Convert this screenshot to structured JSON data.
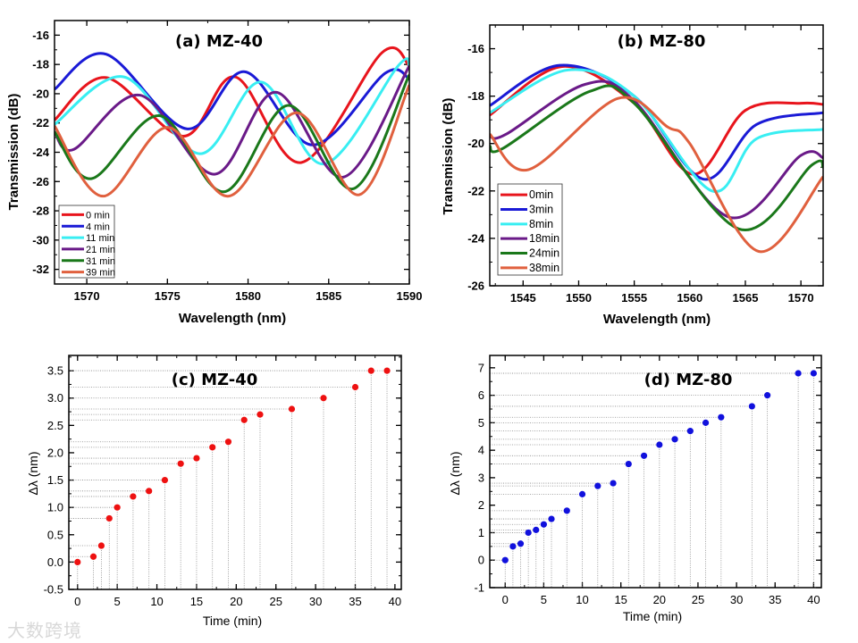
{
  "watermark": "大数跨境",
  "colors": {
    "red": "#e8141c",
    "blue": "#1a1ad6",
    "cyan": "#38eef2",
    "purple": "#6a1a88",
    "green": "#1a781a",
    "orange": "#e0603e",
    "marker_c": "#ee1111",
    "marker_d": "#1111dd",
    "guide": "#8a8a8a"
  },
  "chart_data": [
    {
      "id": "a",
      "type": "line",
      "title": "(a) MZ-40",
      "xlabel": "Wavelength (nm)",
      "ylabel": "Transmission (dB)",
      "xlim": [
        1568,
        1590
      ],
      "ylim": [
        -33,
        -15
      ],
      "xticks": [
        1570,
        1575,
        1580,
        1585,
        1590
      ],
      "yticks": [
        -16,
        -18,
        -20,
        -22,
        -24,
        -26,
        -28,
        -30,
        -32
      ],
      "legend": "bottom-left",
      "series": [
        {
          "name": "0 min",
          "color": "red",
          "points": [
            [
              1568,
              -21.8
            ],
            [
              1571.2,
              -18.9
            ],
            [
              1576.0,
              -22.9
            ],
            [
              1579.2,
              -18.85
            ],
            [
              1583.3,
              -24.7
            ],
            [
              1588.3,
              -17.2
            ],
            [
              1590,
              -18.1
            ]
          ]
        },
        {
          "name": "4 min",
          "color": "blue",
          "points": [
            [
              1568,
              -19.7
            ],
            [
              1571.2,
              -17.3
            ],
            [
              1576.2,
              -22.4
            ],
            [
              1579.8,
              -18.5
            ],
            [
              1584.0,
              -23.5
            ],
            [
              1588.5,
              -18.6
            ],
            [
              1590,
              -19.0
            ]
          ]
        },
        {
          "name": "11 min",
          "color": "cyan",
          "points": [
            [
              1568,
              -22.1
            ],
            [
              1572.3,
              -18.85
            ],
            [
              1577.0,
              -24.1
            ],
            [
              1580.8,
              -19.2
            ],
            [
              1584.7,
              -24.8
            ],
            [
              1589.3,
              -18.1
            ],
            [
              1590,
              -18.1
            ]
          ]
        },
        {
          "name": "21 min",
          "color": "purple",
          "points": [
            [
              1568,
              -22.6
            ],
            [
              1569.2,
              -23.8
            ],
            [
              1573.3,
              -20.1
            ],
            [
              1577.9,
              -25.5
            ],
            [
              1581.7,
              -19.9
            ],
            [
              1585.9,
              -25.7
            ],
            [
              1590,
              -18.1
            ]
          ]
        },
        {
          "name": "31 min",
          "color": "green",
          "points": [
            [
              1568,
              -22.6
            ],
            [
              1570.3,
              -25.8
            ],
            [
              1574.5,
              -21.5
            ],
            [
              1578.5,
              -26.7
            ],
            [
              1582.5,
              -20.8
            ],
            [
              1586.5,
              -26.5
            ],
            [
              1590,
              -18.7
            ]
          ]
        },
        {
          "name": "39 min",
          "color": "orange",
          "points": [
            [
              1568,
              -22.2
            ],
            [
              1571.0,
              -27.0
            ],
            [
              1575.0,
              -22.3
            ],
            [
              1578.8,
              -27.0
            ],
            [
              1583.0,
              -21.3
            ],
            [
              1586.9,
              -26.9
            ],
            [
              1590,
              -19.4
            ]
          ]
        }
      ]
    },
    {
      "id": "b",
      "type": "line",
      "title": "(b) MZ-80",
      "xlabel": "Wavelength (nm)",
      "ylabel": "Transmission (dB)",
      "xlim": [
        1542,
        1572
      ],
      "ylim": [
        -26,
        -15
      ],
      "xticks": [
        1545,
        1550,
        1555,
        1560,
        1565,
        1570
      ],
      "yticks": [
        -16,
        -18,
        -20,
        -22,
        -24,
        -26
      ],
      "legend": "bottom-left",
      "series": [
        {
          "name": "0min",
          "color": "red",
          "points": [
            [
              1542,
              -18.8
            ],
            [
              1548.5,
              -16.75
            ],
            [
              1555,
              -18.3
            ],
            [
              1560.3,
              -21.3
            ],
            [
              1565,
              -18.6
            ],
            [
              1570,
              -18.3
            ],
            [
              1572,
              -18.35
            ]
          ]
        },
        {
          "name": "3min",
          "color": "blue",
          "points": [
            [
              1542,
              -18.4
            ],
            [
              1548.3,
              -16.7
            ],
            [
              1555,
              -18.0
            ],
            [
              1561.2,
              -21.5
            ],
            [
              1566,
              -19.2
            ],
            [
              1572,
              -18.7
            ]
          ]
        },
        {
          "name": "8min",
          "color": "cyan",
          "points": [
            [
              1542,
              -18.7
            ],
            [
              1549,
              -16.9
            ],
            [
              1555,
              -18.0
            ],
            [
              1562,
              -22.0
            ],
            [
              1566,
              -19.8
            ],
            [
              1572,
              -19.4
            ]
          ]
        },
        {
          "name": "18min",
          "color": "purple",
          "points": [
            [
              1542,
              -19.7
            ],
            [
              1543.5,
              -19.6
            ],
            [
              1550.6,
              -17.5
            ],
            [
              1555,
              -18.2
            ],
            [
              1563.5,
              -23.1
            ],
            [
              1570,
              -20.5
            ],
            [
              1572,
              -20.6
            ]
          ]
        },
        {
          "name": "24min",
          "color": "green",
          "points": [
            [
              1542,
              -20.1
            ],
            [
              1543.2,
              -20.2
            ],
            [
              1551,
              -17.8
            ],
            [
              1555,
              -18.3
            ],
            [
              1564.4,
              -23.6
            ],
            [
              1571,
              -20.9
            ],
            [
              1572,
              -21.0
            ]
          ]
        },
        {
          "name": "38min",
          "color": "orange",
          "points": [
            [
              1542,
              -19.6
            ],
            [
              1545.5,
              -21.1
            ],
            [
              1553.5,
              -18.1
            ],
            [
              1558,
              -19.3
            ],
            [
              1560,
              -20.0
            ],
            [
              1566.2,
              -24.55
            ],
            [
              1572,
              -21.4
            ]
          ]
        }
      ]
    },
    {
      "id": "c",
      "type": "scatter",
      "title": "(c) MZ-40",
      "xlabel": "Time (min)",
      "ylabel": "Δλ (nm)",
      "xlim": [
        -1.1,
        40.8
      ],
      "ylim": [
        -0.5,
        3.78
      ],
      "xticks": [
        0,
        5,
        10,
        15,
        20,
        25,
        30,
        35,
        40
      ],
      "yticks": [
        "-0.5",
        "0.0",
        "0.5",
        "1.0",
        "1.5",
        "2.0",
        "2.5",
        "3.0",
        "3.5"
      ],
      "color": "marker_c",
      "x": [
        0,
        2,
        3,
        4,
        5,
        7,
        9,
        11,
        13,
        15,
        17,
        19,
        21,
        23,
        27,
        31,
        35,
        37,
        39
      ],
      "y": [
        0,
        0.1,
        0.3,
        0.8,
        1.0,
        1.2,
        1.3,
        1.5,
        1.8,
        1.9,
        2.1,
        2.2,
        2.6,
        2.7,
        2.8,
        3.0,
        3.2,
        3.5,
        3.5
      ]
    },
    {
      "id": "d",
      "type": "scatter",
      "title": "(d) MZ-80",
      "xlabel": "Time (min)",
      "ylabel": "Δλ (nm)",
      "xlim": [
        -2,
        41
      ],
      "ylim": [
        -1,
        7.45
      ],
      "xticks": [
        0,
        5,
        10,
        15,
        20,
        25,
        30,
        35,
        40
      ],
      "yticks": [
        "-1",
        "0",
        "1",
        "2",
        "3",
        "4",
        "5",
        "6",
        "7"
      ],
      "color": "marker_d",
      "x": [
        0,
        1,
        2,
        3,
        4,
        5,
        6,
        8,
        10,
        12,
        14,
        16,
        18,
        20,
        22,
        24,
        26,
        28,
        32,
        34,
        38,
        40
      ],
      "y": [
        0,
        0.5,
        0.6,
        1.0,
        1.1,
        1.3,
        1.5,
        1.8,
        2.4,
        2.7,
        2.8,
        3.5,
        3.8,
        4.2,
        4.4,
        4.7,
        5.0,
        5.2,
        5.6,
        6.0,
        6.8,
        6.8
      ]
    }
  ]
}
